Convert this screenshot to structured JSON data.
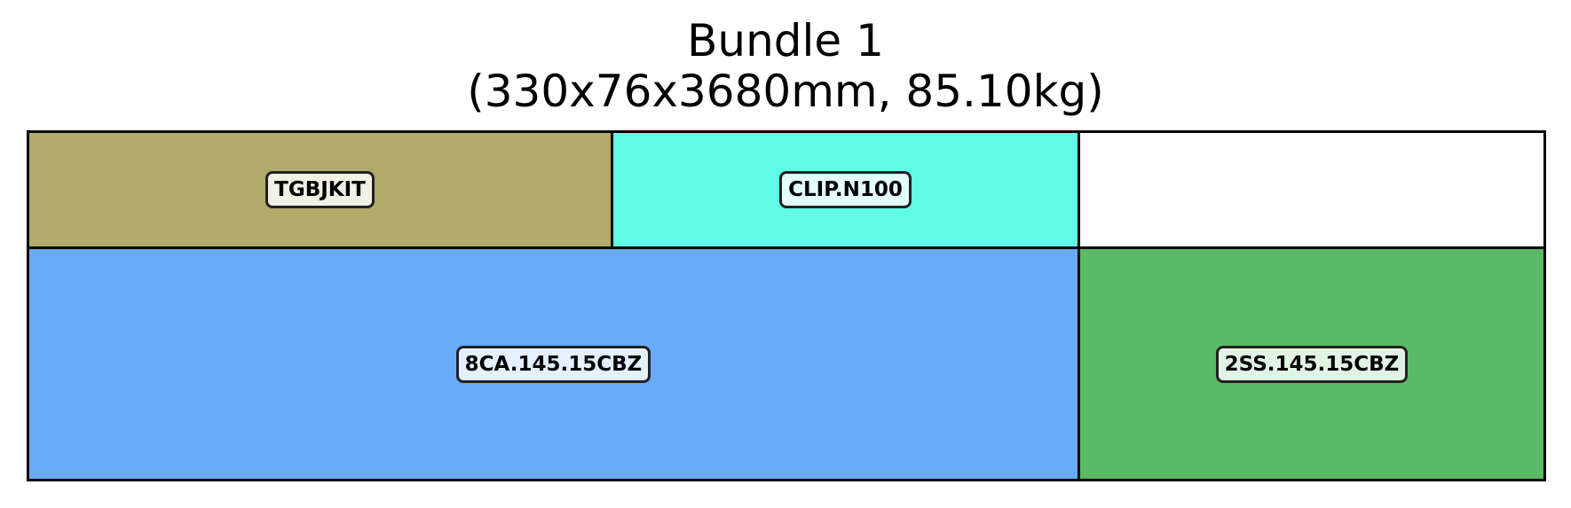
{
  "title": {
    "line1": "Bundle 1",
    "line2": "(330x76x3680mm, 85.10kg)"
  },
  "pieces": [
    {
      "label": "TGBJKIT",
      "color": "#b1aa6a"
    },
    {
      "label": "CLIP.N100",
      "color": "#5ffbe6"
    },
    {
      "label": "",
      "color": "#ffffff"
    },
    {
      "label": "8CA.145.15CBZ",
      "color": "#68abf9"
    },
    {
      "label": "2SS.145.15CBZ",
      "color": "#59bb65"
    }
  ]
}
